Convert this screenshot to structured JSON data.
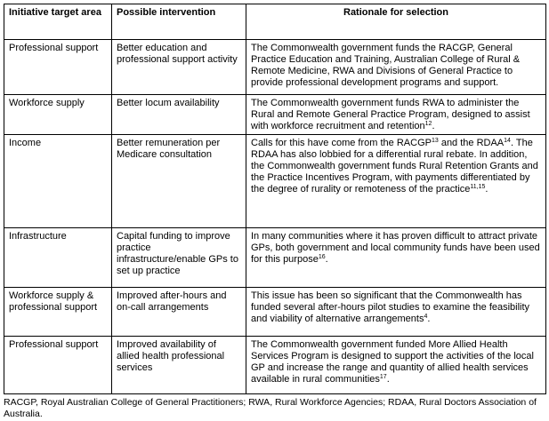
{
  "table": {
    "headers": [
      "Initiative target area",
      "Possible intervention",
      "Rationale for selection"
    ],
    "rows": [
      {
        "area": "Professional support",
        "intervention": "Better education and professional support activity",
        "rationale": [
          {
            "text": "The Commonwealth government funds the RACGP, General Practice Education and Training, Australian College of Rural & Remote Medicine, RWA and Divisions of General Practice to provide professional development programs and support."
          }
        ]
      },
      {
        "area": "Workforce supply",
        "intervention": "Better locum availability",
        "rationale": [
          {
            "text": "The Commonwealth government funds RWA to administer the Rural and Remote General Practice Program, designed to assist with workforce recruitment and retention"
          },
          {
            "sup": "12"
          },
          {
            "text": "."
          }
        ]
      },
      {
        "area": "Income",
        "intervention": "Better remuneration per Medicare consultation",
        "rationale": [
          {
            "text": "Calls for this have come from the RACGP"
          },
          {
            "sup": "13"
          },
          {
            "text": " and the RDAA"
          },
          {
            "sup": "14"
          },
          {
            "text": ". The RDAA has also lobbied for a differential rural rebate. In addition, the Commonwealth government funds Rural Retention Grants and the Practice Incentives Program, with payments differentiated by the degree of rurality or remoteness of the practice"
          },
          {
            "sup": "11,15"
          },
          {
            "text": "."
          }
        ]
      },
      {
        "area": "Infrastructure",
        "intervention": "Capital funding to improve practice infrastructure/enable GPs to set up practice",
        "rationale": [
          {
            "text": "In many communities where it has proven difficult to attract private GPs, both government and local community funds have been used for this purpose"
          },
          {
            "sup": "16"
          },
          {
            "text": "."
          }
        ]
      },
      {
        "area": "Workforce supply & professional support",
        "intervention": "Improved after-hours and on-call arrangements",
        "rationale": [
          {
            "text": "This issue has been so significant that the Commonwealth has funded several after-hours pilot studies to examine the feasibility and viability of alternative arrangements"
          },
          {
            "sup": "4"
          },
          {
            "text": "."
          }
        ]
      },
      {
        "area": "Professional support",
        "intervention": "Improved availability of allied health professional services",
        "rationale": [
          {
            "text": "The Commonwealth government funded More Allied Health Services Program is designed to support the activities of the local GP and increase the range and quantity of allied health services available in rural communities"
          },
          {
            "sup": "17"
          },
          {
            "text": "."
          }
        ]
      }
    ]
  },
  "footnote": "RACGP, Royal Australian College of General Practitioners; RWA, Rural Workforce Agencies; RDAA, Rural Doctors Association of Australia."
}
